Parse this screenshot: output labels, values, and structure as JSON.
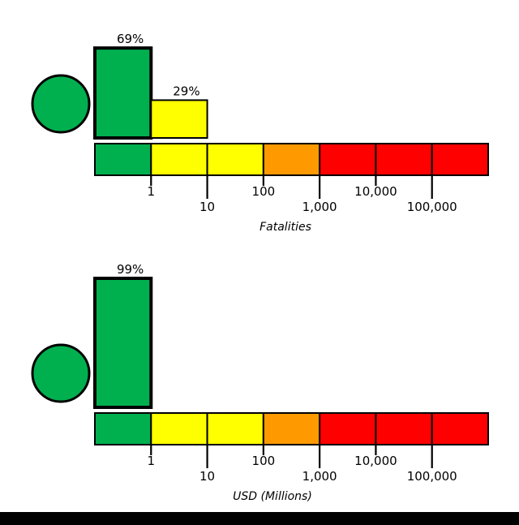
{
  "colors": {
    "green": "#00B04F",
    "yellow": "#FFFF00",
    "orange": "#FF9900",
    "red": "#FF0000",
    "black": "#000000",
    "background": "#FFFFFF"
  },
  "chart_data": [
    {
      "type": "bar",
      "panel": "fatalities",
      "xlabel": "Fatalities",
      "axis_scale": "log",
      "alert_level_color": "#00B04F",
      "bars": [
        {
          "label": "69%",
          "percent": 69,
          "segment": 0,
          "color": "#00B04F",
          "highlighted": true
        },
        {
          "label": "29%",
          "percent": 29,
          "segment": 1,
          "color": "#FFFF00",
          "highlighted": false
        }
      ],
      "scale_segments": [
        "#00B04F",
        "#FFFF00",
        "#FFFF00",
        "#FF9900",
        "#FF0000",
        "#FF0000",
        "#FF0000"
      ],
      "tick_labels": [
        "1",
        "10",
        "100",
        "1,000",
        "10,000",
        "100,000"
      ]
    },
    {
      "type": "bar",
      "panel": "usd-millions",
      "xlabel": "USD (Millions)",
      "axis_scale": "log",
      "alert_level_color": "#00B04F",
      "bars": [
        {
          "label": "99%",
          "percent": 99,
          "segment": 0,
          "color": "#00B04F",
          "highlighted": true
        }
      ],
      "scale_segments": [
        "#00B04F",
        "#FFFF00",
        "#FFFF00",
        "#FF9900",
        "#FF0000",
        "#FF0000",
        "#FF0000"
      ],
      "tick_labels": [
        "1",
        "10",
        "100",
        "1,000",
        "10,000",
        "100,000"
      ]
    }
  ]
}
